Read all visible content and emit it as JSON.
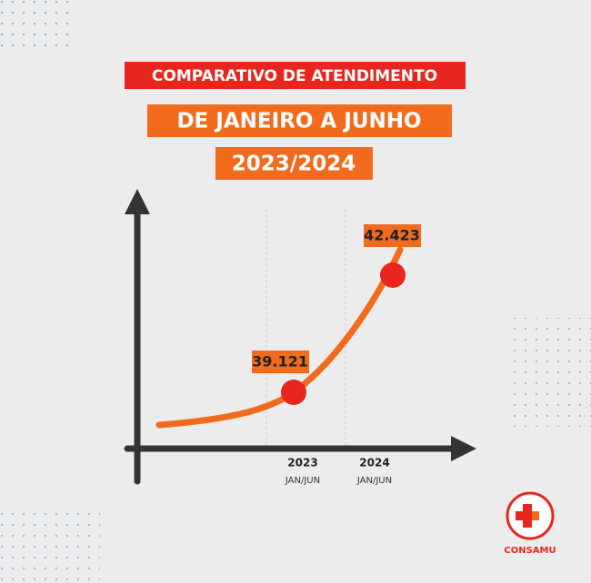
{
  "title": {
    "line1": "COMPARATIVO DE ATENDIMENTO",
    "line2": "DE JANEIRO A JUNHO",
    "line3": "2023/2024"
  },
  "points": [
    {
      "value_label": "39.121",
      "year": "2023",
      "period": "JAN/JUN"
    },
    {
      "value_label": "42.423",
      "year": "2024",
      "period": "JAN/JUN"
    }
  ],
  "logo": {
    "name": "CONSAMU"
  }
}
